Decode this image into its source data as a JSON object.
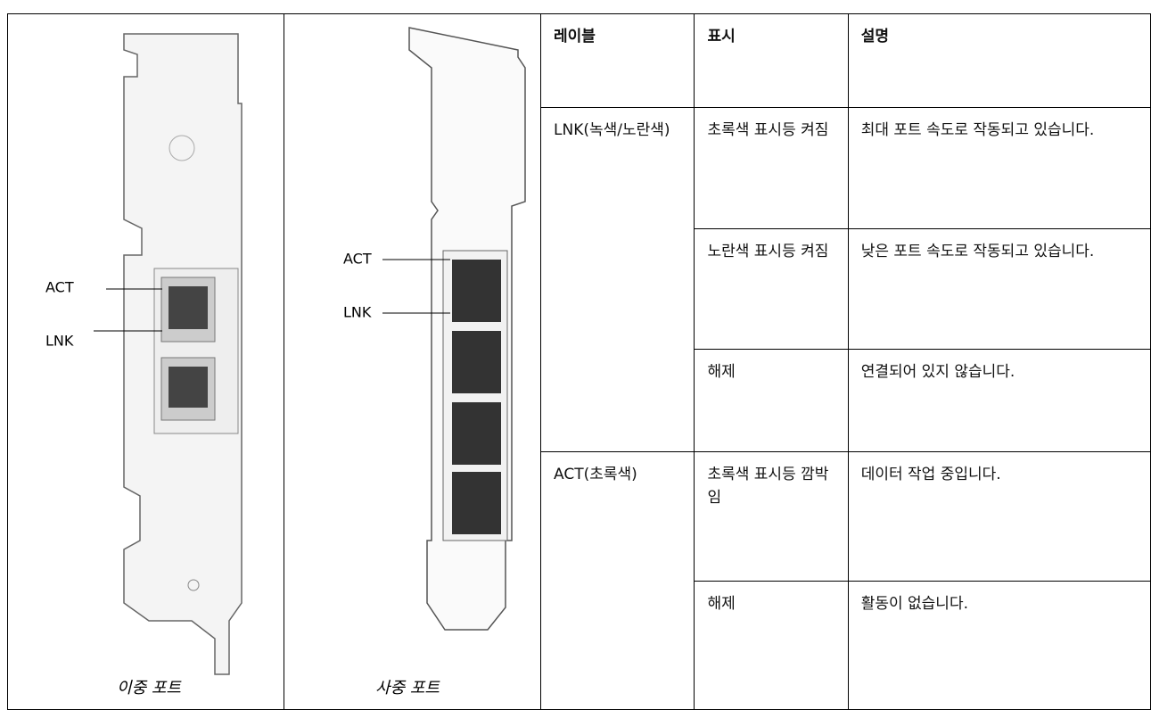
{
  "images": [
    {
      "caption": "이중 포트",
      "callouts": [
        "ACT",
        "LNK"
      ]
    },
    {
      "caption": "사중 포트",
      "callouts": [
        "ACT",
        "LNK"
      ]
    }
  ],
  "table": {
    "header": [
      "레이블",
      "표시",
      "설명"
    ],
    "groups": [
      {
        "label": "LNK(녹색/노란색)",
        "rows": [
          [
            "초록색 표시등 켜짐",
            "최대 포트 속도로 작동되고 있습니다."
          ],
          [
            "노란색 표시등 켜짐",
            "낮은 포트 속도로 작동되고 있습니다."
          ],
          [
            "해제",
            "연결되어 있지 않습니다."
          ]
        ]
      },
      {
        "label": "ACT(초록색)",
        "rows": [
          [
            "초록색 표시등 깜박임",
            "데이터 작업 중입니다."
          ],
          [
            "해제",
            "활동이 없습니다."
          ]
        ]
      }
    ]
  }
}
